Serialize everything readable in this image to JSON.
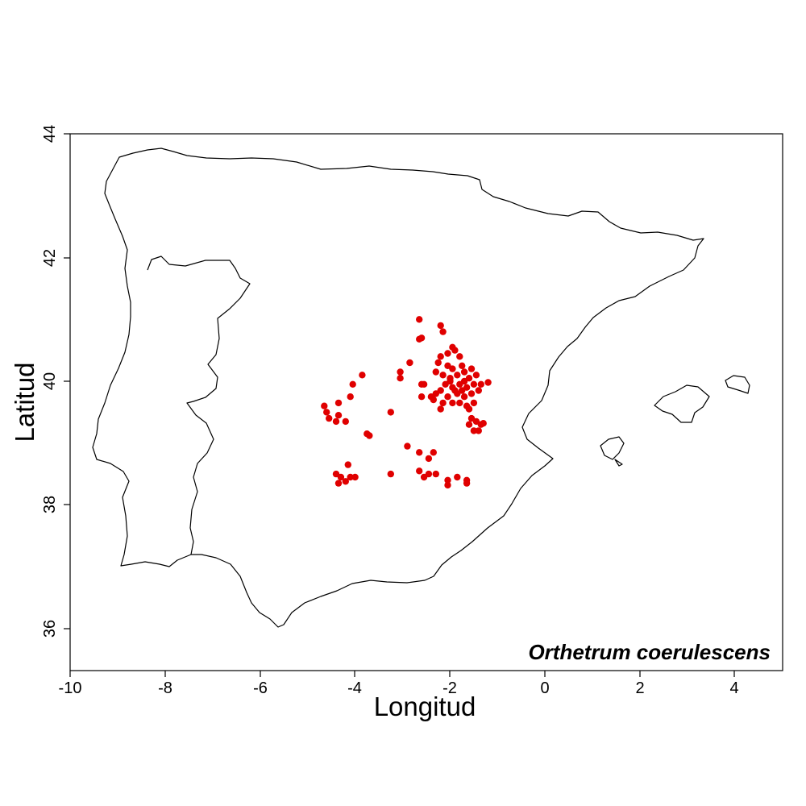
{
  "chart_data": {
    "type": "scatter",
    "species_label": "Orthetrum coerulescens",
    "xlabel": "Longitud",
    "ylabel": "Latitud",
    "xlim": [
      -10,
      5
    ],
    "ylim": [
      35.3,
      44
    ],
    "x_ticks": [
      "-10",
      "-8",
      "-6",
      "-4",
      "-2",
      "0",
      "2",
      "4"
    ],
    "y_ticks": [
      "36",
      "38",
      "40",
      "42",
      "44"
    ],
    "point_color": "#e00000",
    "basemap": "Iberian Peninsula and Balearic Islands coastline outline",
    "points": [
      [
        -2.65,
        41.0
      ],
      [
        -2.2,
        40.9
      ],
      [
        -2.15,
        40.8
      ],
      [
        -2.6,
        40.7
      ],
      [
        -2.65,
        40.68
      ],
      [
        -1.95,
        40.55
      ],
      [
        -1.9,
        40.5
      ],
      [
        -2.05,
        40.45
      ],
      [
        -1.8,
        40.4
      ],
      [
        -2.2,
        40.4
      ],
      [
        -2.25,
        40.3
      ],
      [
        -2.05,
        40.25
      ],
      [
        -1.95,
        40.2
      ],
      [
        -1.75,
        40.25
      ],
      [
        -2.3,
        40.15
      ],
      [
        -2.15,
        40.1
      ],
      [
        -2.0,
        40.05
      ],
      [
        -1.85,
        40.1
      ],
      [
        -1.7,
        40.15
      ],
      [
        -1.55,
        40.2
      ],
      [
        -1.6,
        40.05
      ],
      [
        -1.45,
        40.1
      ],
      [
        -2.1,
        39.95
      ],
      [
        -1.95,
        39.9
      ],
      [
        -1.8,
        39.95
      ],
      [
        -1.65,
        39.9
      ],
      [
        -1.5,
        39.95
      ],
      [
        -1.35,
        39.95
      ],
      [
        -1.2,
        39.98
      ],
      [
        -2.3,
        39.8
      ],
      [
        -2.2,
        39.85
      ],
      [
        -2.05,
        39.75
      ],
      [
        -1.85,
        39.8
      ],
      [
        -1.7,
        39.75
      ],
      [
        -1.55,
        39.8
      ],
      [
        -1.4,
        39.85
      ],
      [
        -2.15,
        39.65
      ],
      [
        -1.95,
        39.65
      ],
      [
        -1.8,
        39.65
      ],
      [
        -1.65,
        39.6
      ],
      [
        -1.5,
        39.65
      ],
      [
        -2.35,
        39.7
      ],
      [
        -1.6,
        39.55
      ],
      [
        -1.55,
        39.4
      ],
      [
        -1.45,
        39.35
      ],
      [
        -1.6,
        39.3
      ],
      [
        -1.35,
        39.3
      ],
      [
        -1.3,
        39.32
      ],
      [
        -1.4,
        39.2
      ],
      [
        -1.5,
        39.2
      ],
      [
        -2.4,
        39.75
      ],
      [
        -2.55,
        39.95
      ],
      [
        -2.2,
        39.55
      ],
      [
        -2.0,
        40.0
      ],
      [
        -1.75,
        39.85
      ],
      [
        -1.9,
        39.85
      ],
      [
        -1.7,
        40.0
      ],
      [
        -2.85,
        40.3
      ],
      [
        -3.05,
        40.15
      ],
      [
        -3.05,
        40.05
      ],
      [
        -2.6,
        39.95
      ],
      [
        -2.6,
        39.75
      ],
      [
        -3.85,
        40.1
      ],
      [
        -4.05,
        39.95
      ],
      [
        -4.1,
        39.75
      ],
      [
        -4.35,
        39.65
      ],
      [
        -4.65,
        39.6
      ],
      [
        -4.6,
        39.5
      ],
      [
        -4.55,
        39.4
      ],
      [
        -4.4,
        39.35
      ],
      [
        -4.2,
        39.35
      ],
      [
        -4.35,
        39.45
      ],
      [
        -3.25,
        39.5
      ],
      [
        -3.75,
        39.15
      ],
      [
        -3.7,
        39.12
      ],
      [
        -2.9,
        38.95
      ],
      [
        -2.65,
        38.85
      ],
      [
        -2.35,
        38.85
      ],
      [
        -2.45,
        38.75
      ],
      [
        -4.15,
        38.65
      ],
      [
        -4.4,
        38.5
      ],
      [
        -4.3,
        38.45
      ],
      [
        -4.1,
        38.45
      ],
      [
        -4.0,
        38.45
      ],
      [
        -4.35,
        38.35
      ],
      [
        -4.2,
        38.38
      ],
      [
        -3.25,
        38.5
      ],
      [
        -2.65,
        38.55
      ],
      [
        -2.55,
        38.45
      ],
      [
        -2.45,
        38.5
      ],
      [
        -2.3,
        38.5
      ],
      [
        -2.05,
        38.4
      ],
      [
        -2.05,
        38.32
      ],
      [
        -1.85,
        38.45
      ],
      [
        -1.65,
        38.4
      ],
      [
        -1.65,
        38.35
      ]
    ]
  }
}
